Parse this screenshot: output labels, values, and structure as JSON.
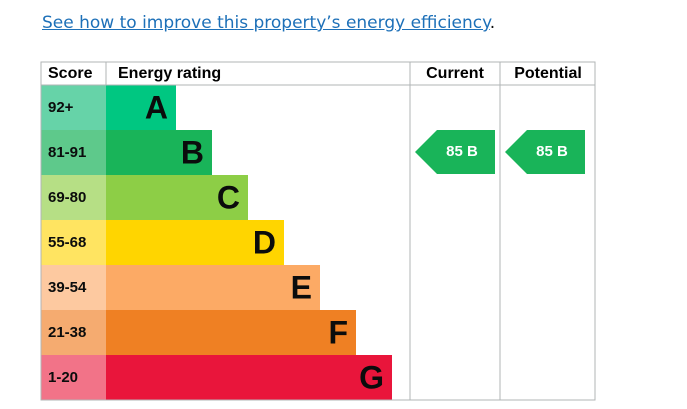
{
  "link": {
    "text": "See how to improve this property’s energy efficiency",
    "suffix": "."
  },
  "table": {
    "headers": [
      "Score",
      "Energy rating",
      "Current",
      "Potential"
    ],
    "bands": [
      {
        "score": "92+",
        "letter": "A"
      },
      {
        "score": "81-91",
        "letter": "B"
      },
      {
        "score": "69-80",
        "letter": "C"
      },
      {
        "score": "55-68",
        "letter": "D"
      },
      {
        "score": "39-54",
        "letter": "E"
      },
      {
        "score": "21-38",
        "letter": "F"
      },
      {
        "score": "1-20",
        "letter": "G"
      }
    ],
    "current": "85 B",
    "potential": "85 B"
  }
}
